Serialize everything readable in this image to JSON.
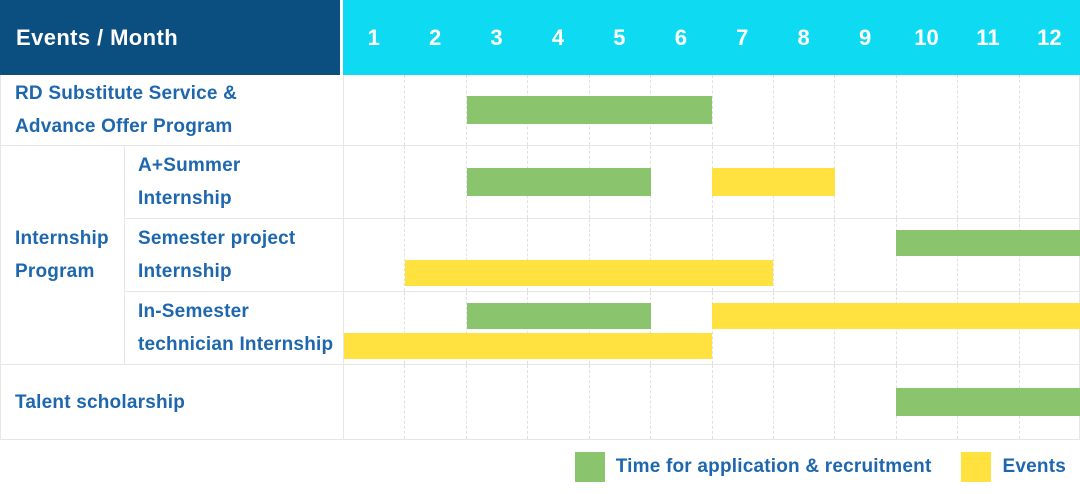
{
  "colors": {
    "corner_bg": "#0b4e80",
    "month_header_bg": "#0edaf1",
    "header_text": "#ffffff",
    "label_text": "#1e67ae",
    "green": "#8ac46d",
    "yellow": "#ffe240",
    "grid_border": "#e6e6e6",
    "gridline_dashed": "#e0e0e0"
  },
  "header": {
    "title": "Events / Month",
    "months": [
      "1",
      "2",
      "3",
      "4",
      "5",
      "6",
      "7",
      "8",
      "9",
      "10",
      "11",
      "12"
    ]
  },
  "legend": {
    "items": [
      {
        "name": "Time for application & recruitment",
        "color_key": "green"
      },
      {
        "name": "Events",
        "color_key": "yellow"
      }
    ]
  },
  "group_label_lines": [
    "Internship",
    "Program"
  ],
  "chart_data": {
    "type": "bar",
    "subtype": "gantt-schedule",
    "title": "Events / Month",
    "x_axis": {
      "unit": "month",
      "ticks": [
        "1",
        "2",
        "3",
        "4",
        "5",
        "6",
        "7",
        "8",
        "9",
        "10",
        "11",
        "12"
      ],
      "range": [
        1,
        12
      ]
    },
    "grid": true,
    "legend_position": "bottom-right",
    "series_legend": [
      {
        "name": "Time for application & recruitment",
        "color": "#8ac46d"
      },
      {
        "name": "Events",
        "color": "#ffe240"
      }
    ],
    "rows": [
      {
        "event": "RD Substitute Service & Advance Offer Program",
        "label_lines": [
          "RD Substitute Service &",
          "Advance Offer Program"
        ],
        "group": null,
        "bars": [
          {
            "series": "Time for application & recruitment",
            "color_key": "green",
            "track": "single",
            "start_month": 3,
            "end_month": 6
          }
        ]
      },
      {
        "event": "A+Summer Internship",
        "label_lines": [
          "A+Summer",
          "Internship"
        ],
        "group": "Internship Program",
        "bars": [
          {
            "series": "Time for application & recruitment",
            "color_key": "green",
            "track": "single",
            "start_month": 3,
            "end_month": 5
          },
          {
            "series": "Events",
            "color_key": "yellow",
            "track": "single",
            "start_month": 7,
            "end_month": 8
          }
        ]
      },
      {
        "event": "Semester project Internship",
        "label_lines": [
          "Semester project",
          "Internship"
        ],
        "group": "Internship Program",
        "bars": [
          {
            "series": "Time for application & recruitment",
            "color_key": "green",
            "track": "upper",
            "start_month": 10,
            "end_month": 12
          },
          {
            "series": "Events",
            "color_key": "yellow",
            "track": "lower",
            "start_month": 2,
            "end_month": 7
          }
        ]
      },
      {
        "event": "In-Semester technician Internship",
        "label_lines": [
          "In-Semester",
          "technician Internship"
        ],
        "group": "Internship Program",
        "bars": [
          {
            "series": "Time for application & recruitment",
            "color_key": "green",
            "track": "upper",
            "start_month": 3,
            "end_month": 5
          },
          {
            "series": "Events",
            "color_key": "yellow",
            "track": "upper",
            "start_month": 7,
            "end_month": 12
          },
          {
            "series": "Events",
            "color_key": "yellow",
            "track": "lower",
            "start_month": 1,
            "end_month": 6
          }
        ]
      },
      {
        "event": "Talent scholarship",
        "label_lines": [
          "Talent scholarship"
        ],
        "group": null,
        "bars": [
          {
            "series": "Time for application & recruitment",
            "color_key": "green",
            "track": "single",
            "start_month": 10,
            "end_month": 12
          }
        ]
      }
    ]
  }
}
